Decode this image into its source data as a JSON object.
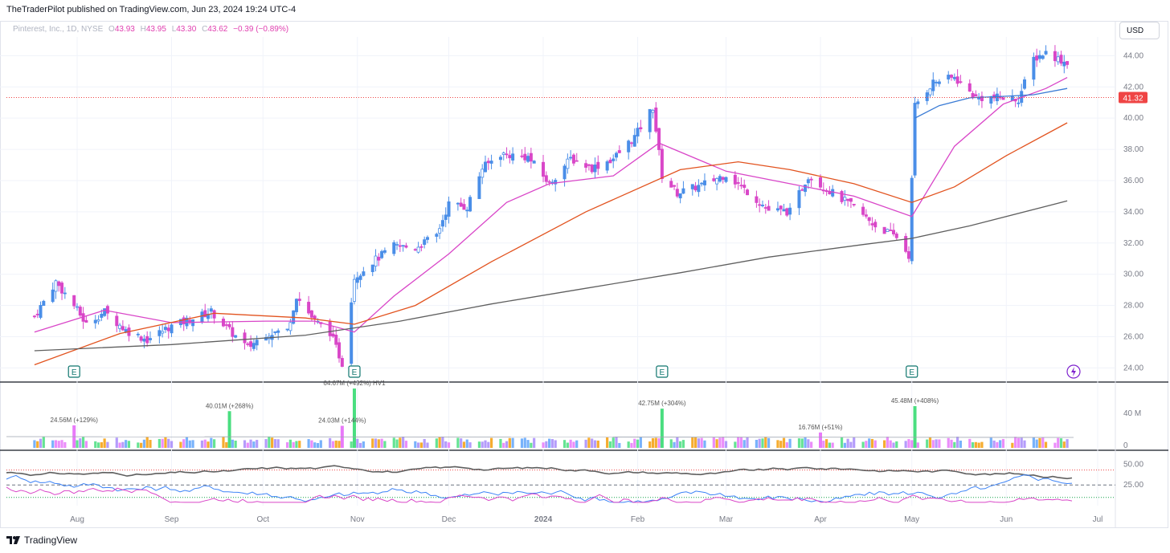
{
  "header": {
    "published": "TheTraderPilot published on TradingView.com, Jun 23, 2024 19:24 UTC-4"
  },
  "legend": {
    "symbol": "Pinterest, Inc., 1D, NYSE",
    "open_label": "O",
    "open": "43.93",
    "high_label": "H",
    "high": "43.95",
    "low_label": "L",
    "low": "43.30",
    "close_label": "C",
    "close": "43.62",
    "change": "−0.39 (−0.89%)"
  },
  "currency": "USD",
  "footer": {
    "brand": "TradingView"
  },
  "chart_data": {
    "type": "candlestick",
    "price_axis": {
      "ticks": [
        "44.00",
        "42.00",
        "40.00",
        "38.00",
        "36.00",
        "34.00",
        "32.00",
        "30.00",
        "28.00",
        "26.00",
        "24.00"
      ],
      "ylim": [
        23.2,
        45.2
      ]
    },
    "last_price_label": "41.32",
    "x_tick_labels": [
      "Aug",
      "Sep",
      "Oct",
      "Nov",
      "Dec",
      "2024",
      "Feb",
      "Mar",
      "Apr",
      "May",
      "Jun",
      "Jul"
    ],
    "earnings_marker": "E",
    "close_path": [
      {
        "d": "2023-07-18",
        "c": 27.3
      },
      {
        "d": "2023-07-25",
        "c": 29.5
      },
      {
        "d": "2023-07-31",
        "c": 28.0
      },
      {
        "d": "2023-08-04",
        "c": 26.8
      },
      {
        "d": "2023-08-10",
        "c": 27.6
      },
      {
        "d": "2023-08-17",
        "c": 26.4
      },
      {
        "d": "2023-08-24",
        "c": 25.8
      },
      {
        "d": "2023-08-31",
        "c": 26.6
      },
      {
        "d": "2023-09-07",
        "c": 27.1
      },
      {
        "d": "2023-09-14",
        "c": 27.6
      },
      {
        "d": "2023-09-21",
        "c": 26.2
      },
      {
        "d": "2023-09-26",
        "c": 25.3
      },
      {
        "d": "2023-10-02",
        "c": 26.2
      },
      {
        "d": "2023-10-09",
        "c": 26.4
      },
      {
        "d": "2023-10-12",
        "c": 28.6
      },
      {
        "d": "2023-10-18",
        "c": 27.0
      },
      {
        "d": "2023-10-23",
        "c": 26.3
      },
      {
        "d": "2023-10-27",
        "c": 24.3
      },
      {
        "d": "2023-10-31",
        "c": 29.8
      },
      {
        "d": "2023-11-06",
        "c": 30.8
      },
      {
        "d": "2023-11-13",
        "c": 31.8
      },
      {
        "d": "2023-11-20",
        "c": 31.7
      },
      {
        "d": "2023-11-27",
        "c": 32.5
      },
      {
        "d": "2023-12-01",
        "c": 34.5
      },
      {
        "d": "2023-12-07",
        "c": 34.3
      },
      {
        "d": "2023-12-12",
        "c": 36.8
      },
      {
        "d": "2023-12-18",
        "c": 37.7
      },
      {
        "d": "2023-12-27",
        "c": 37.5
      },
      {
        "d": "2024-01-03",
        "c": 35.8
      },
      {
        "d": "2024-01-10",
        "c": 37.4
      },
      {
        "d": "2024-01-17",
        "c": 36.8
      },
      {
        "d": "2024-01-24",
        "c": 37.4
      },
      {
        "d": "2024-01-31",
        "c": 38.8
      },
      {
        "d": "2024-02-06",
        "c": 40.7
      },
      {
        "d": "2024-02-09",
        "c": 36.3
      },
      {
        "d": "2024-02-14",
        "c": 35.2
      },
      {
        "d": "2024-02-22",
        "c": 35.7
      },
      {
        "d": "2024-03-01",
        "c": 36.4
      },
      {
        "d": "2024-03-08",
        "c": 35.3
      },
      {
        "d": "2024-03-15",
        "c": 34.1
      },
      {
        "d": "2024-03-22",
        "c": 34.0
      },
      {
        "d": "2024-03-28",
        "c": 36.3
      },
      {
        "d": "2024-04-05",
        "c": 35.2
      },
      {
        "d": "2024-04-12",
        "c": 34.3
      },
      {
        "d": "2024-04-19",
        "c": 33.1
      },
      {
        "d": "2024-04-26",
        "c": 32.4
      },
      {
        "d": "2024-04-30",
        "c": 31.2
      },
      {
        "d": "2024-05-02",
        "c": 40.8
      },
      {
        "d": "2024-05-08",
        "c": 42.3
      },
      {
        "d": "2024-05-15",
        "c": 42.6
      },
      {
        "d": "2024-05-22",
        "c": 41.3
      },
      {
        "d": "2024-05-30",
        "c": 41.3
      },
      {
        "d": "2024-06-05",
        "c": 41.2
      },
      {
        "d": "2024-06-10",
        "c": 43.8
      },
      {
        "d": "2024-06-14",
        "c": 44.2
      },
      {
        "d": "2024-06-20",
        "c": 43.6
      }
    ],
    "moving_averages": [
      {
        "color": "#d946c8",
        "points": [
          {
            "d": "2023-07-18",
            "v": 26.3
          },
          {
            "d": "2023-08-10",
            "v": 27.7
          },
          {
            "d": "2023-09-01",
            "v": 26.9
          },
          {
            "d": "2023-10-02",
            "v": 27.0
          },
          {
            "d": "2023-10-18",
            "v": 27.0
          },
          {
            "d": "2023-10-31",
            "v": 26.3
          },
          {
            "d": "2023-11-13",
            "v": 28.6
          },
          {
            "d": "2023-12-01",
            "v": 31.3
          },
          {
            "d": "2023-12-20",
            "v": 34.6
          },
          {
            "d": "2024-01-03",
            "v": 35.8
          },
          {
            "d": "2024-01-24",
            "v": 36.3
          },
          {
            "d": "2024-02-08",
            "v": 38.4
          },
          {
            "d": "2024-03-01",
            "v": 36.6
          },
          {
            "d": "2024-03-22",
            "v": 35.8
          },
          {
            "d": "2024-04-12",
            "v": 35.0
          },
          {
            "d": "2024-05-01",
            "v": 33.7
          },
          {
            "d": "2024-05-15",
            "v": 38.2
          },
          {
            "d": "2024-05-31",
            "v": 40.9
          },
          {
            "d": "2024-06-14",
            "v": 41.9
          },
          {
            "d": "2024-06-21",
            "v": 42.6
          }
        ]
      },
      {
        "color": "#e2531f",
        "points": [
          {
            "d": "2023-07-18",
            "v": 24.2
          },
          {
            "d": "2023-08-15",
            "v": 26.2
          },
          {
            "d": "2023-09-15",
            "v": 27.5
          },
          {
            "d": "2023-10-15",
            "v": 27.2
          },
          {
            "d": "2023-10-31",
            "v": 26.8
          },
          {
            "d": "2023-11-20",
            "v": 28.0
          },
          {
            "d": "2023-12-15",
            "v": 30.8
          },
          {
            "d": "2024-01-15",
            "v": 34.0
          },
          {
            "d": "2024-02-15",
            "v": 36.7
          },
          {
            "d": "2024-03-05",
            "v": 37.2
          },
          {
            "d": "2024-03-22",
            "v": 36.7
          },
          {
            "d": "2024-04-12",
            "v": 35.8
          },
          {
            "d": "2024-05-01",
            "v": 34.6
          },
          {
            "d": "2024-05-15",
            "v": 35.6
          },
          {
            "d": "2024-06-01",
            "v": 37.6
          },
          {
            "d": "2024-06-21",
            "v": 39.7
          }
        ]
      },
      {
        "color": "#5f5f5f",
        "points": [
          {
            "d": "2023-07-18",
            "v": 25.1
          },
          {
            "d": "2023-09-01",
            "v": 25.5
          },
          {
            "d": "2023-10-15",
            "v": 26.1
          },
          {
            "d": "2023-11-15",
            "v": 27.0
          },
          {
            "d": "2023-12-15",
            "v": 28.1
          },
          {
            "d": "2024-01-15",
            "v": 29.1
          },
          {
            "d": "2024-02-15",
            "v": 30.1
          },
          {
            "d": "2024-03-15",
            "v": 31.1
          },
          {
            "d": "2024-04-15",
            "v": 31.9
          },
          {
            "d": "2024-05-01",
            "v": 32.3
          },
          {
            "d": "2024-05-20",
            "v": 33.1
          },
          {
            "d": "2024-06-21",
            "v": 34.7
          }
        ]
      },
      {
        "color": "#3a7bd5",
        "points": [
          {
            "d": "2024-05-02",
            "v": 40.0
          },
          {
            "d": "2024-05-10",
            "v": 40.8
          },
          {
            "d": "2024-05-20",
            "v": 41.3
          },
          {
            "d": "2024-06-01",
            "v": 41.4
          },
          {
            "d": "2024-06-10",
            "v": 41.5
          },
          {
            "d": "2024-06-21",
            "v": 41.9
          }
        ]
      }
    ],
    "volume": {
      "axis_ticks": [
        "40 M",
        "0"
      ],
      "annotations": [
        {
          "d": "2023-07-31",
          "text": "24.56M (+129%)"
        },
        {
          "d": "2023-09-20",
          "text": "40.01M (+268%)"
        },
        {
          "d": "2023-10-31",
          "text": "64.67M (+492%) HV1"
        },
        {
          "d": "2023-10-27",
          "text": "24.03M (+144%)"
        },
        {
          "d": "2024-02-09",
          "text": "42.75M (+304%)"
        },
        {
          "d": "2024-04-01",
          "text": "16.76M (+51%)"
        },
        {
          "d": "2024-05-02",
          "text": "45.48M (+408%)"
        }
      ]
    },
    "oscillator": {
      "axis_ticks": [
        "50.00",
        "25.00"
      ]
    }
  }
}
